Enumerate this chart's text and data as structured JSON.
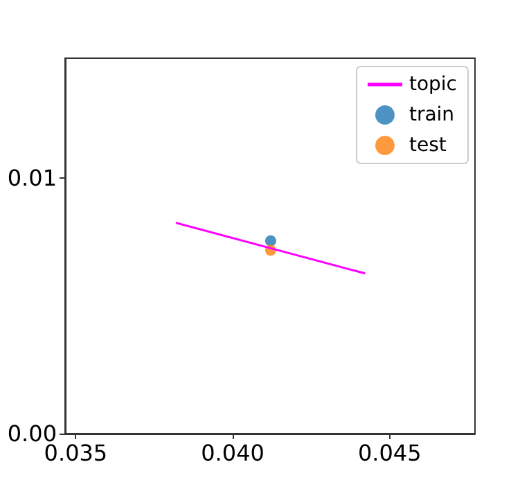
{
  "chart_data": {
    "type": "scatter",
    "xlim": [
      0.03466,
      0.04772
    ],
    "ylim": [
      0,
      0.0147
    ],
    "xticks": [
      {
        "value": 0.035,
        "label": "0.035"
      },
      {
        "value": 0.04,
        "label": "0.040"
      },
      {
        "value": 0.045,
        "label": "0.045"
      }
    ],
    "yticks": [
      {
        "value": 0,
        "label": "0.00"
      },
      {
        "value": 0.01,
        "label": "0.01"
      }
    ],
    "grid": false,
    "legend": "top right",
    "marker": "circle",
    "series": [
      {
        "name": "topic",
        "type": "line",
        "color": "#ff00ff",
        "x": [
          0.03819,
          0.04422
        ],
        "values": [
          0.00825,
          0.00627
        ],
        "marker": "none",
        "line_style": "solid"
      },
      {
        "name": "train",
        "type": "scatter",
        "color": "#1f77b4",
        "x": [
          0.04121
        ],
        "values": [
          0.00755
        ]
      },
      {
        "name": "test",
        "type": "scatter",
        "color": "#ff7f0e",
        "x": [
          0.04121
        ],
        "values": [
          0.00718
        ]
      }
    ]
  }
}
